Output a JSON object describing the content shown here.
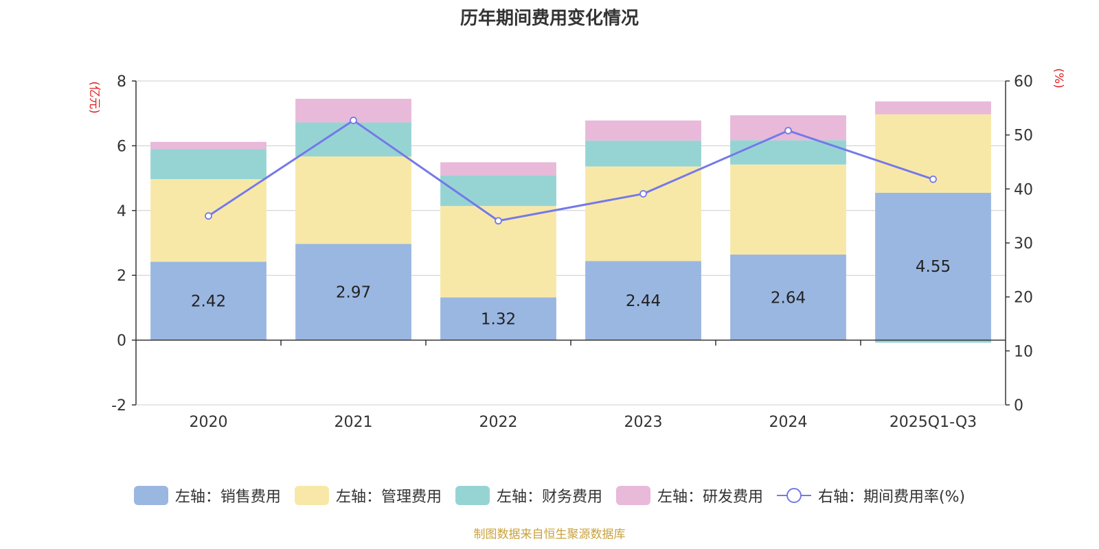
{
  "chart_data": {
    "type": "bar",
    "title": "历年期间费用变化情况",
    "categories": [
      "2020",
      "2021",
      "2022",
      "2023",
      "2024",
      "2025Q1-Q3"
    ],
    "left_axis": {
      "unit_label": "(亿元)",
      "ylim": [
        -2,
        8
      ],
      "ticks": [
        -2,
        0,
        2,
        4,
        6,
        8
      ]
    },
    "right_axis": {
      "unit_label": "(%)",
      "ylim": [
        0,
        60
      ],
      "ticks": [
        0,
        10,
        20,
        30,
        40,
        50,
        60
      ]
    },
    "series": [
      {
        "name": "左轴：销售费用",
        "axis": "left",
        "kind": "bar",
        "color": "#9ab7e1",
        "values": [
          2.42,
          2.97,
          1.32,
          2.44,
          2.64,
          4.55
        ],
        "show_labels": true
      },
      {
        "name": "左轴：管理费用",
        "axis": "left",
        "kind": "bar",
        "color": "#f8e8a8",
        "values": [
          2.55,
          2.7,
          2.82,
          2.92,
          2.78,
          2.42
        ]
      },
      {
        "name": "左轴：财务费用",
        "axis": "left",
        "kind": "bar",
        "color": "#96d4d4",
        "values": [
          0.93,
          1.05,
          0.95,
          0.8,
          0.75,
          -0.08
        ]
      },
      {
        "name": "左轴：研发费用",
        "axis": "left",
        "kind": "bar",
        "color": "#e8b9d9",
        "values": [
          0.22,
          0.73,
          0.4,
          0.62,
          0.77,
          0.4
        ]
      },
      {
        "name": "右轴：期间费用率(%)",
        "axis": "right",
        "kind": "line",
        "color": "#7479e8",
        "values": [
          35.0,
          52.7,
          34.1,
          39.1,
          50.8,
          41.8
        ]
      }
    ],
    "value_labels": [
      "2.42",
      "2.97",
      "1.32",
      "2.44",
      "2.64",
      "4.55"
    ]
  },
  "source": "制图数据来自恒生聚源数据库"
}
